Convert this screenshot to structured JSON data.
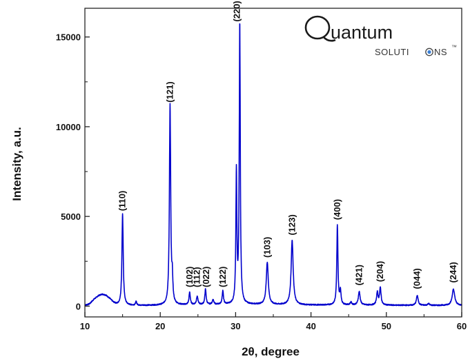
{
  "logo": {
    "initial": "Q",
    "rest": "uantum",
    "sub_left": "SOLUTI",
    "sub_right": "NS",
    "tm": "™",
    "dot_color": "#3a7fd5"
  },
  "chart_data": {
    "type": "line",
    "title": "",
    "xlabel": "2θ, degree",
    "ylabel": "Intensity, a.u.",
    "xlim": [
      10,
      60
    ],
    "ylim": [
      -600,
      16600
    ],
    "xticks": [
      10,
      20,
      30,
      40,
      50,
      60
    ],
    "yticks": [
      0,
      5000,
      10000,
      15000
    ],
    "grid": false,
    "line_color": "#0000cc",
    "series": [
      {
        "baseline": [
          [
            10,
            50
          ],
          [
            10.6,
            120
          ],
          [
            11.2,
            380
          ],
          [
            11.8,
            580
          ],
          [
            12.3,
            660
          ],
          [
            12.8,
            600
          ],
          [
            13.3,
            420
          ],
          [
            13.8,
            200
          ],
          [
            14.3,
            80
          ],
          [
            16,
            40
          ],
          [
            20,
            40
          ],
          [
            23,
            60
          ],
          [
            27,
            80
          ],
          [
            32,
            90
          ],
          [
            36,
            70
          ],
          [
            40,
            60
          ],
          [
            45,
            60
          ],
          [
            50,
            50
          ],
          [
            55,
            40
          ],
          [
            60,
            40
          ]
        ],
        "peaks": [
          {
            "x": 15.0,
            "y": 5100,
            "w": 0.1
          },
          {
            "x": 16.8,
            "y": 200,
            "w": 0.1
          },
          {
            "x": 21.3,
            "y": 11150,
            "w": 0.1
          },
          {
            "x": 21.6,
            "y": 1200,
            "w": 0.08
          },
          {
            "x": 23.9,
            "y": 700,
            "w": 0.1
          },
          {
            "x": 24.9,
            "y": 450,
            "w": 0.12
          },
          {
            "x": 26.0,
            "y": 850,
            "w": 0.1
          },
          {
            "x": 27.0,
            "y": 250,
            "w": 0.12
          },
          {
            "x": 28.3,
            "y": 750,
            "w": 0.1
          },
          {
            "x": 30.1,
            "y": 7300,
            "w": 0.08
          },
          {
            "x": 30.55,
            "y": 15650,
            "w": 0.08
          },
          {
            "x": 34.2,
            "y": 2350,
            "w": 0.16
          },
          {
            "x": 37.5,
            "y": 3600,
            "w": 0.16
          },
          {
            "x": 43.5,
            "y": 4450,
            "w": 0.09
          },
          {
            "x": 43.9,
            "y": 750,
            "w": 0.1
          },
          {
            "x": 45.3,
            "y": 150,
            "w": 0.12
          },
          {
            "x": 46.4,
            "y": 750,
            "w": 0.14
          },
          {
            "x": 48.8,
            "y": 700,
            "w": 0.12
          },
          {
            "x": 49.2,
            "y": 950,
            "w": 0.12
          },
          {
            "x": 54.1,
            "y": 550,
            "w": 0.14
          },
          {
            "x": 55.6,
            "y": 100,
            "w": 0.14
          },
          {
            "x": 58.9,
            "y": 900,
            "w": 0.2
          }
        ]
      }
    ],
    "annotations": [
      {
        "text": "(110)",
        "x": 15.0,
        "y": 5300
      },
      {
        "text": "(121)",
        "x": 21.3,
        "y": 11350
      },
      {
        "text": "(102)",
        "x": 23.9,
        "y": 1050
      },
      {
        "text": "(112)",
        "x": 24.9,
        "y": 1050
      },
      {
        "text": "(022)",
        "x": 26.1,
        "y": 1050
      },
      {
        "text": "(122)",
        "x": 28.3,
        "y": 1050
      },
      {
        "text": "(220)",
        "x": 30.2,
        "y": 15850
      },
      {
        "text": "(103)",
        "x": 34.2,
        "y": 2700
      },
      {
        "text": "(123)",
        "x": 37.5,
        "y": 3950
      },
      {
        "text": "(400)",
        "x": 43.5,
        "y": 4800
      },
      {
        "text": "(421)",
        "x": 46.4,
        "y": 1150
      },
      {
        "text": "(204)",
        "x": 49.2,
        "y": 1350
      },
      {
        "text": "(044)",
        "x": 54.1,
        "y": 950
      },
      {
        "text": "(244)",
        "x": 58.9,
        "y": 1300
      }
    ]
  }
}
